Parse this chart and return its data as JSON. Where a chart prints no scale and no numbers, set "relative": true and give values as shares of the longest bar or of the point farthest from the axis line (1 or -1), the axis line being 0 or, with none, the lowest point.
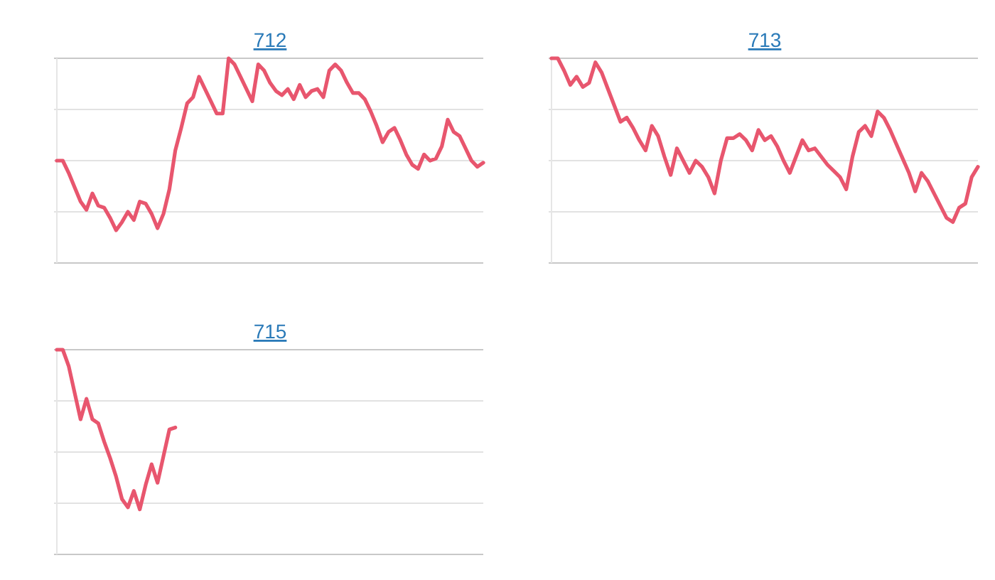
{
  "chart_data": [
    {
      "type": "line",
      "title": "712",
      "relative": true,
      "grid": "y",
      "categories": [
        null,
        null,
        null,
        null,
        null,
        null,
        null,
        null,
        null,
        null,
        null,
        null,
        null,
        null,
        null,
        null,
        null,
        null,
        null,
        null,
        null,
        null,
        null,
        null,
        null,
        null,
        null,
        null,
        null,
        null,
        null,
        null,
        null,
        null,
        null,
        null,
        null,
        null,
        null,
        null,
        null,
        null,
        null,
        null,
        null,
        null,
        null,
        null,
        null,
        null,
        null,
        null,
        null,
        null,
        null,
        null,
        null,
        null,
        null,
        null,
        null,
        null,
        null,
        null,
        null,
        null,
        null,
        null,
        null,
        null,
        null,
        null,
        null
      ],
      "series": [
        {
          "color": "#e8566e",
          "values": [
            0.5,
            0.5,
            0.44,
            0.37,
            0.3,
            0.26,
            0.34,
            0.28,
            0.27,
            0.22,
            0.16,
            0.2,
            0.25,
            0.21,
            0.3,
            0.29,
            0.24,
            0.17,
            0.24,
            0.36,
            0.55,
            0.66,
            0.78,
            0.81,
            0.91,
            0.85,
            0.79,
            0.73,
            0.73,
            1.0,
            0.97,
            0.91,
            0.85,
            0.79,
            0.97,
            0.94,
            0.88,
            0.84,
            0.82,
            0.85,
            0.8,
            0.87,
            0.81,
            0.84,
            0.85,
            0.81,
            0.94,
            0.97,
            0.94,
            0.88,
            0.83,
            0.83,
            0.8,
            0.74,
            0.67,
            0.59,
            0.64,
            0.66,
            0.6,
            0.53,
            0.48,
            0.46,
            0.53,
            0.5,
            0.51,
            0.57,
            0.7,
            0.64,
            0.62,
            0.56,
            0.5,
            0.47,
            0.49
          ]
        }
      ]
    },
    {
      "type": "line",
      "title": "713",
      "relative": true,
      "grid": "y",
      "categories": [
        null,
        null,
        null,
        null,
        null,
        null,
        null,
        null,
        null,
        null,
        null,
        null,
        null,
        null,
        null,
        null,
        null,
        null,
        null,
        null,
        null,
        null,
        null,
        null,
        null,
        null,
        null,
        null,
        null,
        null,
        null,
        null,
        null,
        null,
        null,
        null,
        null,
        null,
        null,
        null,
        null,
        null,
        null,
        null,
        null,
        null,
        null,
        null,
        null,
        null,
        null,
        null,
        null,
        null,
        null,
        null,
        null,
        null,
        null,
        null,
        null,
        null,
        null,
        null,
        null,
        null,
        null,
        null,
        null
      ],
      "series": [
        {
          "color": "#e8566e",
          "values": [
            1.0,
            1.0,
            0.94,
            0.87,
            0.91,
            0.86,
            0.88,
            0.98,
            0.93,
            0.85,
            0.77,
            0.69,
            0.71,
            0.66,
            0.6,
            0.55,
            0.67,
            0.62,
            0.52,
            0.43,
            0.56,
            0.5,
            0.44,
            0.5,
            0.47,
            0.42,
            0.34,
            0.5,
            0.61,
            0.61,
            0.63,
            0.6,
            0.55,
            0.65,
            0.6,
            0.62,
            0.57,
            0.5,
            0.44,
            0.52,
            0.6,
            0.55,
            0.56,
            0.52,
            0.48,
            0.45,
            0.42,
            0.36,
            0.52,
            0.64,
            0.67,
            0.62,
            0.74,
            0.71,
            0.65,
            0.58,
            0.51,
            0.44,
            0.35,
            0.44,
            0.4,
            0.34,
            0.28,
            0.22,
            0.2,
            0.27,
            0.29,
            0.42,
            0.47
          ]
        }
      ]
    },
    {
      "type": "line",
      "title": "715",
      "relative": true,
      "grid": "y",
      "categories": [
        null,
        null,
        null,
        null,
        null,
        null,
        null,
        null,
        null,
        null,
        null,
        null,
        null,
        null,
        null,
        null,
        null,
        null,
        null,
        null,
        null,
        null,
        null,
        null,
        null,
        null,
        null,
        null,
        null,
        null,
        null,
        null,
        null,
        null,
        null,
        null,
        null,
        null,
        null,
        null,
        null,
        null,
        null,
        null,
        null,
        null,
        null,
        null,
        null,
        null,
        null,
        null,
        null,
        null,
        null,
        null,
        null,
        null,
        null,
        null,
        null,
        null,
        null,
        null,
        null,
        null,
        null,
        null,
        null,
        null,
        null,
        null,
        null
      ],
      "series": [
        {
          "color": "#e8566e",
          "values": [
            1.0,
            1.0,
            0.92,
            0.79,
            0.66,
            0.76,
            0.66,
            0.64,
            0.55,
            0.47,
            0.38,
            0.27,
            0.23,
            0.31,
            0.22,
            0.34,
            0.44,
            0.35,
            0.48,
            0.61,
            0.62,
            null,
            null,
            null,
            null,
            null,
            null,
            null,
            null,
            null,
            null,
            null,
            null,
            null,
            null,
            null,
            null,
            null,
            null,
            null,
            null,
            null,
            null,
            null,
            null,
            null,
            null,
            null,
            null,
            null,
            null,
            null,
            null,
            null,
            null,
            null,
            null,
            null,
            null,
            null,
            null,
            null,
            null,
            null,
            null,
            null,
            null,
            null,
            null,
            null,
            null,
            null,
            null
          ]
        }
      ]
    }
  ]
}
